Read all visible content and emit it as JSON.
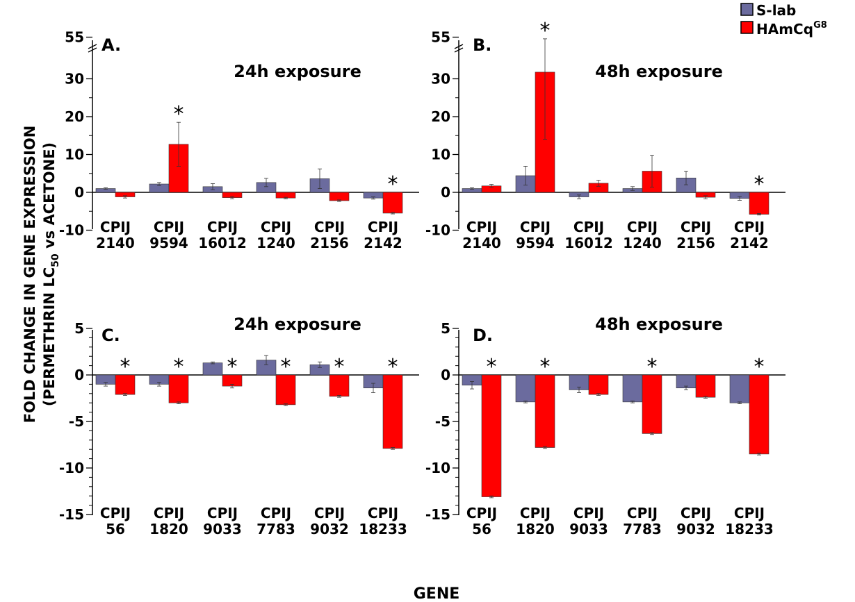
{
  "legend": {
    "items": [
      {
        "label": "S-lab",
        "sup": "",
        "color": "#6b6b9e"
      },
      {
        "label": "HAmCq",
        "sup": "G8",
        "color": "#ff0000"
      }
    ]
  },
  "y_axis_label": {
    "line1": "FOLD CHANGE IN GENE EXPRESSION",
    "line2_prefix": "(PERMETHRIN LC",
    "line2_sub": "50",
    "line2_suffix": " vs ACETONE)"
  },
  "x_axis_label": "GENE",
  "chart_data": [
    {
      "type": "bar",
      "panel": "A.",
      "title": "24h exposure",
      "categories": [
        [
          "CPIJ",
          "2140"
        ],
        [
          "CPIJ",
          "9594"
        ],
        [
          "CPIJ",
          "16012"
        ],
        [
          "CPIJ",
          "1240"
        ],
        [
          "CPIJ",
          "2156"
        ],
        [
          "CPIJ",
          "2142"
        ]
      ],
      "series": [
        {
          "name": "S-lab",
          "values": [
            1.0,
            2.2,
            1.5,
            2.6,
            3.6,
            -1.5
          ],
          "errors": [
            0.2,
            0.4,
            0.8,
            1.1,
            2.6,
            0.3
          ]
        },
        {
          "name": "HAmCq G8",
          "values": [
            -1.2,
            12.7,
            -1.4,
            -1.5,
            -2.2,
            -5.5
          ],
          "errors": [
            0.3,
            5.8,
            0.3,
            0.2,
            0.2,
            0.2
          ]
        }
      ],
      "significant": [
        false,
        true,
        false,
        false,
        false,
        true
      ],
      "ylim": [
        -10,
        55
      ],
      "yticks": [
        "-10",
        "0",
        "10",
        "20",
        "30",
        "55"
      ],
      "axis_break": true,
      "grid": false
    },
    {
      "type": "bar",
      "panel": "B.",
      "title": "48h exposure",
      "categories": [
        [
          "CPIJ",
          "2140"
        ],
        [
          "CPIJ",
          "9594"
        ],
        [
          "CPIJ",
          "16012"
        ],
        [
          "CPIJ",
          "1240"
        ],
        [
          "CPIJ",
          "2156"
        ],
        [
          "CPIJ",
          "2142"
        ]
      ],
      "series": [
        {
          "name": "S-lab",
          "values": [
            1.0,
            4.4,
            -1.2,
            1.0,
            3.8,
            -1.6
          ],
          "errors": [
            0.2,
            2.5,
            0.5,
            0.5,
            1.8,
            0.5
          ]
        },
        {
          "name": "HAmCq G8",
          "values": [
            1.7,
            34,
            2.4,
            5.6,
            -1.3,
            -5.8
          ],
          "errors": [
            0.4,
            20,
            0.8,
            4.2,
            0.4,
            0.2
          ]
        }
      ],
      "significant": [
        false,
        true,
        false,
        false,
        false,
        true
      ],
      "ylim": [
        -10,
        55
      ],
      "yticks": [
        "-10",
        "0",
        "10",
        "20",
        "30",
        "55"
      ],
      "axis_break": true,
      "grid": false
    },
    {
      "type": "bar",
      "panel": "C.",
      "title": "24h exposure",
      "categories": [
        [
          "CPIJ",
          "56"
        ],
        [
          "CPIJ",
          "1820"
        ],
        [
          "CPIJ",
          "9033"
        ],
        [
          "CPIJ",
          "7783"
        ],
        [
          "CPIJ",
          "9032"
        ],
        [
          "CPIJ",
          "18233"
        ]
      ],
      "series": [
        {
          "name": "S-lab",
          "values": [
            -1.0,
            -1.0,
            1.3,
            1.6,
            1.1,
            -1.4
          ],
          "errors": [
            0.2,
            0.2,
            0.1,
            0.5,
            0.3,
            0.5
          ]
        },
        {
          "name": "HAmCq G8",
          "values": [
            -2.1,
            -3.0,
            -1.2,
            -3.2,
            -2.3,
            -7.9
          ],
          "errors": [
            0.1,
            0.1,
            0.2,
            0.1,
            0.1,
            0.1
          ]
        }
      ],
      "significant": [
        true,
        true,
        true,
        true,
        true,
        true
      ],
      "ylim": [
        -15,
        5
      ],
      "yticks": [
        "-15",
        "-10",
        "-5",
        "0",
        "5"
      ],
      "axis_break": false,
      "grid": false
    },
    {
      "type": "bar",
      "panel": "D.",
      "title": "48h exposure",
      "categories": [
        [
          "CPIJ",
          "56"
        ],
        [
          "CPIJ",
          "1820"
        ],
        [
          "CPIJ",
          "9033"
        ],
        [
          "CPIJ",
          "7783"
        ],
        [
          "CPIJ",
          "9032"
        ],
        [
          "CPIJ",
          "18233"
        ]
      ],
      "series": [
        {
          "name": "S-lab",
          "values": [
            -1.1,
            -2.9,
            -1.6,
            -2.9,
            -1.4,
            -3.0
          ],
          "errors": [
            0.4,
            0.1,
            0.3,
            0.1,
            0.2,
            0.1
          ]
        },
        {
          "name": "HAmCq G8",
          "values": [
            -13.1,
            -7.8,
            -2.1,
            -6.3,
            -2.4,
            -8.5
          ],
          "errors": [
            0.1,
            0.1,
            0.1,
            0.1,
            0.1,
            0.1
          ]
        }
      ],
      "significant": [
        true,
        true,
        false,
        true,
        false,
        true
      ],
      "ylim": [
        -15,
        5
      ],
      "yticks": [
        "-15",
        "-10",
        "-5",
        "0",
        "5"
      ],
      "axis_break": false,
      "grid": false
    }
  ]
}
